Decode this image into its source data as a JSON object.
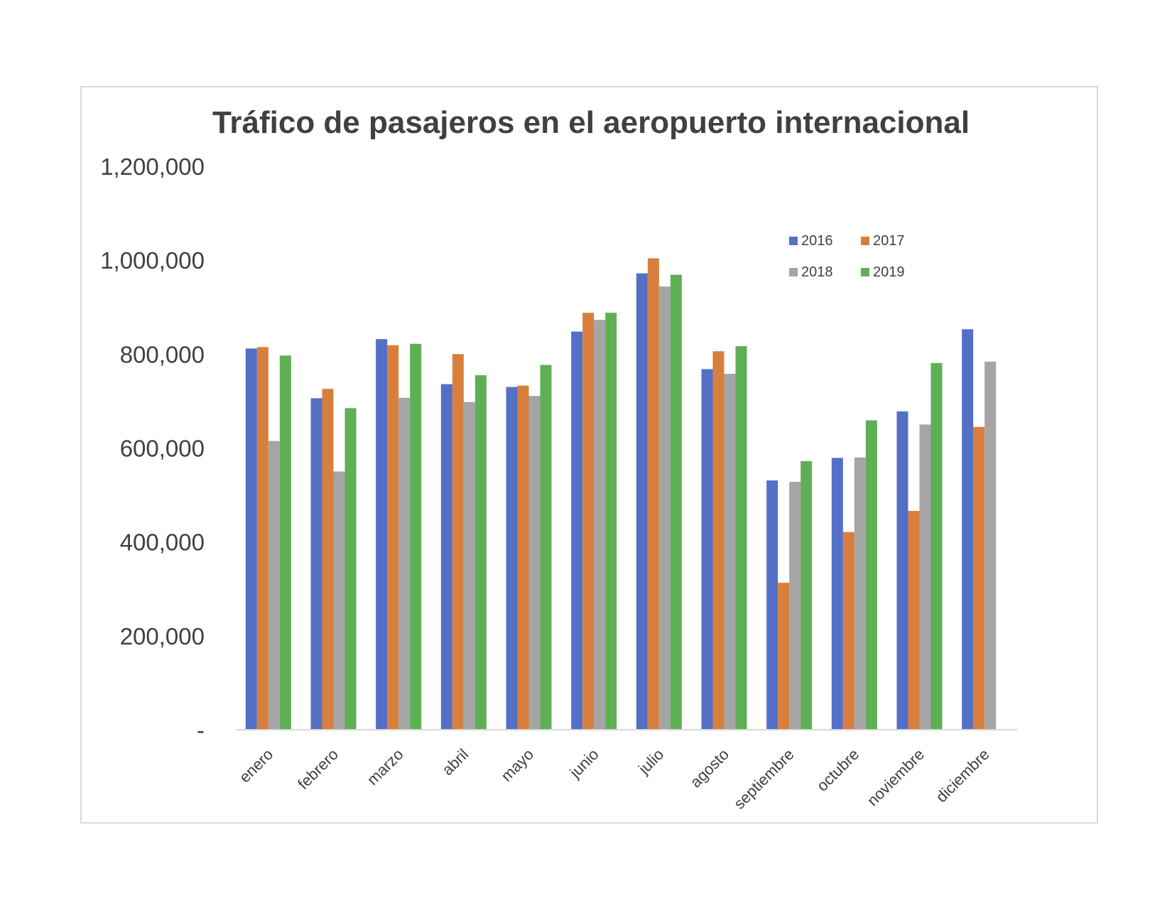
{
  "chart_data": {
    "type": "bar",
    "title": "Tráfico de pasajeros en el aeropuerto internacional",
    "xlabel": "",
    "ylabel": "",
    "ylim": [
      0,
      1200000
    ],
    "yticks": [
      0,
      200000,
      400000,
      600000,
      800000,
      1000000,
      1200000
    ],
    "ytick_labels": [
      "-",
      "200,000",
      "400,000",
      "600,000",
      "800,000",
      "1,000,000",
      "1,200,000"
    ],
    "grid": false,
    "legend_position": "top-right",
    "categories": [
      "enero",
      "febrero",
      "marzo",
      "abril",
      "mayo",
      "junio",
      "julio",
      "agosto",
      "septiembre",
      "octubre",
      "noviembre",
      "diciembre"
    ],
    "series": [
      {
        "name": "2016",
        "color": "#5470c6",
        "values": [
          812000,
          706000,
          832000,
          736000,
          730000,
          848000,
          972000,
          768000,
          531000,
          579000,
          678000,
          853000
        ]
      },
      {
        "name": "2017",
        "color": "#d87f3e",
        "values": [
          815000,
          726000,
          819000,
          800000,
          733000,
          888000,
          1004000,
          806000,
          313000,
          421000,
          466000,
          645000
        ]
      },
      {
        "name": "2018",
        "color": "#a5a5a5",
        "values": [
          615000,
          550000,
          707000,
          698000,
          711000,
          873000,
          944000,
          758000,
          528000,
          580000,
          650000,
          784000
        ]
      },
      {
        "name": "2019",
        "color": "#5faf55",
        "values": [
          797000,
          685000,
          822000,
          755000,
          777000,
          888000,
          969000,
          817000,
          572000,
          659000,
          781000,
          null
        ]
      }
    ]
  }
}
